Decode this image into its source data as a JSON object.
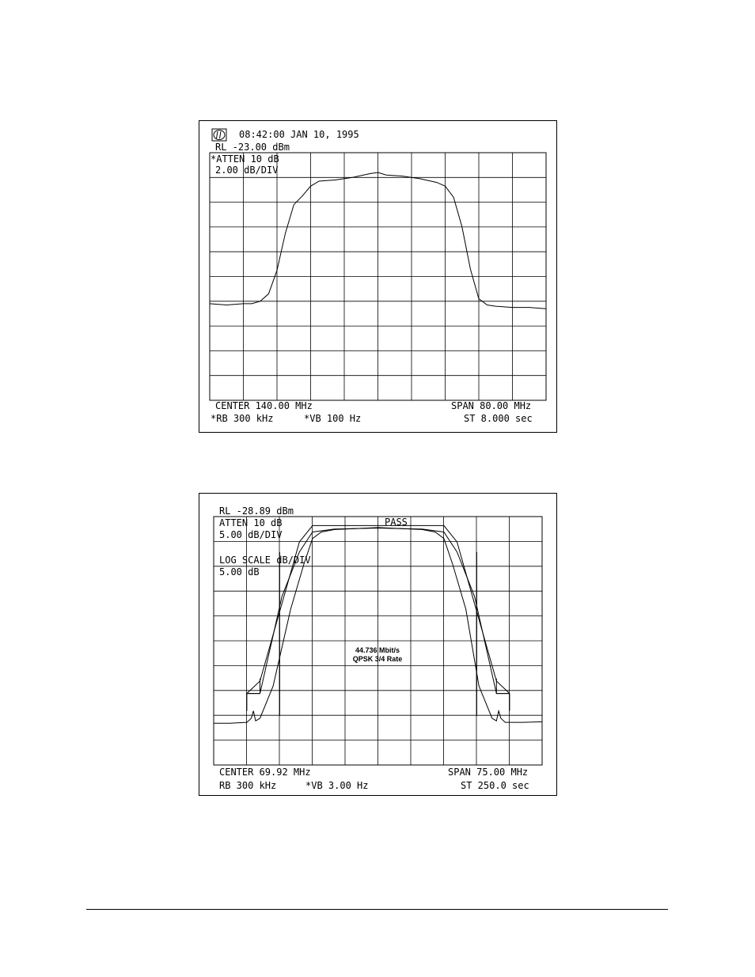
{
  "charts_text": {
    "c1": {
      "header": "08:42:00  JAN 10, 1995",
      "rl": "RL -23.00 dBm",
      "atten": "*ATTEN 10 dB",
      "scale": "2.00 dB/DIV",
      "center": "CENTER 140.00 MHz",
      "span": "SPAN 80.00 MHz",
      "rb": "*RB 300 kHz",
      "vb": "*VB 100 Hz",
      "st": "ST 8.000 sec"
    },
    "c2": {
      "rl": "RL -28.89 dBm",
      "atten": "ATTEN 10 dB",
      "scale": "5.00 dB/DIV",
      "pass": "PASS",
      "log_scale": "LOG SCALE dB/DIV",
      "log_value": "5.00 dB",
      "annot_line1": "44.736 Mbit/s",
      "annot_line2": "QPSK  3/4 Rate",
      "center": "CENTER 69.92 MHz",
      "span": "SPAN 75.00 MHz",
      "rb": "RB 300 kHz",
      "vb": "*VB 3.00 Hz",
      "st": "ST 250.0 sec"
    }
  },
  "chart_data": [
    {
      "type": "line",
      "xlabel": "",
      "ylabel": "",
      "xlim": [
        100,
        180
      ],
      "ylim": [
        -43,
        -23
      ],
      "grid": true,
      "x_divisions": 10,
      "y_divisions": 10,
      "series": [
        {
          "x": [
            100,
            104,
            108,
            110,
            112,
            114,
            116,
            118,
            120,
            122,
            124,
            126,
            130,
            134,
            138,
            140,
            142,
            146,
            150,
            154,
            156,
            158,
            160,
            162,
            164,
            166,
            168,
            172,
            176,
            180
          ],
          "values": [
            -35.2,
            -35.3,
            -35.2,
            -35.2,
            -35.0,
            -34.4,
            -32.5,
            -29.5,
            -27.2,
            -26.5,
            -25.7,
            -25.3,
            -25.2,
            -25.0,
            -24.7,
            -24.6,
            -24.8,
            -24.9,
            -25.1,
            -25.4,
            -25.7,
            -26.6,
            -29.0,
            -32.4,
            -34.8,
            -35.3,
            -35.4,
            -35.5,
            -35.5,
            -35.6
          ],
          "color": "#000000"
        }
      ]
    },
    {
      "type": "line",
      "xlabel": "",
      "ylabel": "",
      "xlim": [
        32.42,
        107.42
      ],
      "ylim": [
        -78.89,
        -28.89
      ],
      "grid": true,
      "x_divisions": 10,
      "y_divisions": 10,
      "series": [
        {
          "x": [
            32.42,
            36,
            40,
            41,
            41.5,
            42,
            43,
            46,
            50,
            53,
            55,
            57,
            60,
            65,
            70,
            75,
            80,
            83,
            85,
            87,
            90,
            93,
            96,
            97,
            97.5,
            98,
            99,
            103,
            107.42
          ],
          "values": [
            -70.5,
            -70.5,
            -70.3,
            -69.5,
            -68.0,
            -70.0,
            -69.5,
            -63.0,
            -47.5,
            -38.5,
            -33.3,
            -32.0,
            -31.5,
            -31.3,
            -31.1,
            -31.3,
            -31.5,
            -32.0,
            -33.3,
            -38.5,
            -47.5,
            -63.0,
            -69.5,
            -70.0,
            -68.0,
            -69.5,
            -70.3,
            -70.3,
            -70.2
          ],
          "color": "#000000"
        },
        {
          "x": [
            40,
            43,
            48,
            52,
            55,
            60,
            70,
            80,
            85,
            88,
            92,
            97,
            100
          ],
          "values": [
            -64.5,
            -64.5,
            -45.0,
            -36.0,
            -32.0,
            -31.4,
            -31.2,
            -31.4,
            -32.0,
            -36.0,
            -45.0,
            -64.5,
            -64.5
          ],
          "color": "#000000"
        },
        {
          "x": [
            40,
            43,
            52,
            55,
            85,
            88,
            97,
            100
          ],
          "values": [
            -64.5,
            -62.0,
            -34.0,
            -30.7,
            -30.7,
            -34.0,
            -62.0,
            -64.5
          ],
          "color": "#000000"
        },
        {
          "x": [
            40,
            40,
            43,
            43
          ],
          "values": [
            -68.0,
            -64.5,
            -64.5,
            -61.5
          ],
          "color": "#000000"
        },
        {
          "x": [
            97,
            97,
            100,
            100
          ],
          "values": [
            -61.5,
            -64.5,
            -64.5,
            -68.0
          ],
          "color": "#000000"
        },
        {
          "x": [
            47.5,
            47.5
          ],
          "values": [
            -69.0,
            -36.0
          ],
          "color": "#000000"
        },
        {
          "x": [
            92.5,
            92.5
          ],
          "values": [
            -36.0,
            -69.0
          ],
          "color": "#000000"
        }
      ]
    }
  ]
}
